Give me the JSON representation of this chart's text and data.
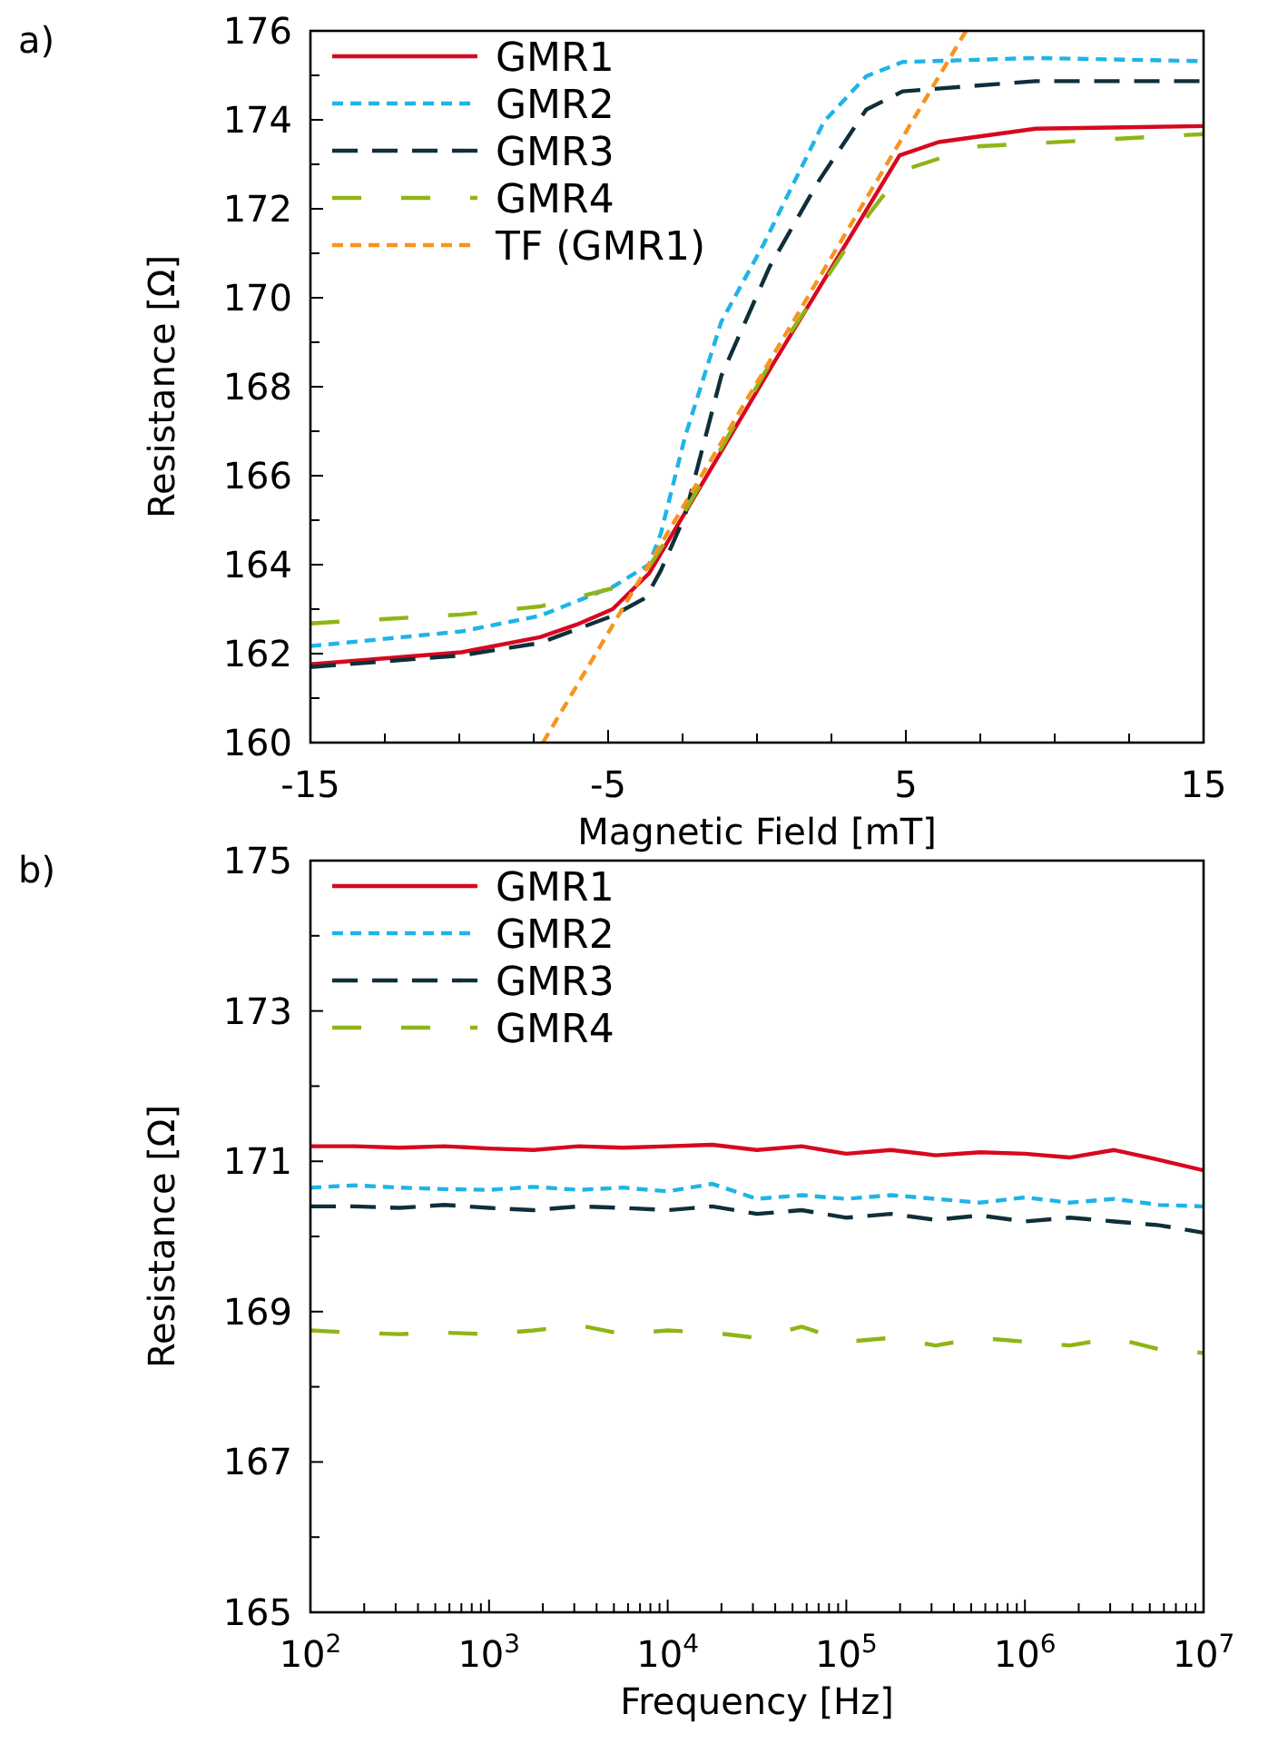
{
  "chart_data": [
    {
      "type": "line",
      "annotations": [
        "a)"
      ],
      "xlabel": "Magnetic Field [mT]",
      "ylabel": "Resistance [Ω]",
      "xlim": [
        -15,
        15
      ],
      "ylim": [
        160,
        176
      ],
      "xticks": [
        -15,
        {
          "value": -12.5,
          "label": null
        },
        {
          "value": -10,
          "label": null
        },
        {
          "value": -7.5,
          "label": null
        },
        -5,
        {
          "value": -2.5,
          "label": null
        },
        {
          "value": 0,
          "label": null
        },
        {
          "value": 2.5,
          "label": null
        },
        5,
        {
          "value": 7.5,
          "label": null
        },
        {
          "value": 10,
          "label": null
        },
        {
          "value": 12.5,
          "label": null
        },
        15
      ],
      "yticks": [
        160,
        {
          "value": 161,
          "label": null
        },
        162,
        {
          "value": 163,
          "label": null
        },
        164,
        {
          "value": 165,
          "label": null
        },
        166,
        {
          "value": 167,
          "label": null
        },
        168,
        {
          "value": 169,
          "label": null
        },
        170,
        {
          "value": 171,
          "label": null
        },
        172,
        {
          "value": 173,
          "label": null
        },
        174,
        {
          "value": 175,
          "label": null
        },
        176
      ],
      "grid": false,
      "legend": "top left",
      "series": [
        {
          "name": "GMR1",
          "color": "#d7081f",
          "line_style": "solid",
          "x": [
            -15,
            -9.93,
            -7.29,
            -6.07,
            -4.85,
            -3.63,
            0.53,
            4.79,
            6.1,
            9.36,
            15
          ],
          "values": [
            161.76,
            162.03,
            162.37,
            162.65,
            163.0,
            163.8,
            168.5,
            173.2,
            173.5,
            173.8,
            173.86
          ]
        },
        {
          "name": "GMR2",
          "color": "#1eb4e8",
          "line_style": "dotted",
          "x": [
            -15,
            -9.93,
            -7.29,
            -4.85,
            -3.63,
            -3.23,
            -2.42,
            -1.2,
            0.22,
            2.25,
            3.67,
            4.89,
            9.36,
            15
          ],
          "values": [
            162.17,
            162.5,
            162.85,
            163.5,
            164.0,
            164.7,
            166.87,
            169.46,
            171.2,
            173.96,
            174.98,
            175.3,
            175.39,
            175.32
          ]
        },
        {
          "name": "GMR3",
          "color": "#0f2f3a",
          "line_style": "dashed",
          "x": [
            -15,
            -9.93,
            -7.29,
            -4.85,
            -3.73,
            -3.23,
            -2.42,
            -1.2,
            0.42,
            2.05,
            3.67,
            4.89,
            9.36,
            15
          ],
          "values": [
            161.7,
            161.96,
            162.24,
            162.85,
            163.26,
            163.87,
            165.1,
            168.24,
            170.69,
            172.6,
            174.23,
            174.64,
            174.87,
            174.87
          ]
        },
        {
          "name": "GMR4",
          "color": "#8fb515",
          "line_style": "dashed",
          "x": [
            -15,
            -9.93,
            -7.29,
            -4.85,
            -3.63,
            -2.42,
            0.42,
            3.67,
            4.89,
            7.33,
            15
          ],
          "values": [
            162.68,
            162.88,
            163.06,
            163.47,
            163.95,
            165.2,
            168.5,
            171.8,
            172.86,
            173.4,
            173.68
          ]
        },
        {
          "name": "TF (GMR1)",
          "color": "#f7941d",
          "line_style": "dotted",
          "x": [
            -7.19,
            7.02
          ],
          "values": [
            160,
            176
          ]
        }
      ]
    },
    {
      "type": "line",
      "annotations": [
        "b)"
      ],
      "xlabel": "Frequency [Hz]",
      "ylabel": "Resistance [Ω]",
      "log": "x",
      "xlim": [
        100,
        10000000
      ],
      "ylim": [
        165,
        175
      ],
      "xticks": [
        {
          "value": 100,
          "label": "10$^{2}$"
        },
        {
          "value": 200,
          "label": null
        },
        {
          "value": 300,
          "label": null
        },
        {
          "value": 400,
          "label": null
        },
        {
          "value": 500,
          "label": null
        },
        {
          "value": 600,
          "label": null
        },
        {
          "value": 700,
          "label": null
        },
        {
          "value": 800,
          "label": null
        },
        {
          "value": 900,
          "label": null
        },
        {
          "value": 1000,
          "label": "10$^{3}$"
        },
        {
          "value": 2000,
          "label": null
        },
        {
          "value": 3000,
          "label": null
        },
        {
          "value": 4000,
          "label": null
        },
        {
          "value": 5000,
          "label": null
        },
        {
          "value": 6000,
          "label": null
        },
        {
          "value": 7000,
          "label": null
        },
        {
          "value": 8000,
          "label": null
        },
        {
          "value": 9000,
          "label": null
        },
        {
          "value": 10000,
          "label": "10$^{4}$"
        },
        {
          "value": 20000,
          "label": null
        },
        {
          "value": 30000,
          "label": null
        },
        {
          "value": 40000,
          "label": null
        },
        {
          "value": 50000,
          "label": null
        },
        {
          "value": 60000,
          "label": null
        },
        {
          "value": 70000,
          "label": null
        },
        {
          "value": 80000,
          "label": null
        },
        {
          "value": 90000,
          "label": null
        },
        {
          "value": 100000,
          "label": "10$^{5}$"
        },
        {
          "value": 200000,
          "label": null
        },
        {
          "value": 300000,
          "label": null
        },
        {
          "value": 400000,
          "label": null
        },
        {
          "value": 500000,
          "label": null
        },
        {
          "value": 600000,
          "label": null
        },
        {
          "value": 700000,
          "label": null
        },
        {
          "value": 800000,
          "label": null
        },
        {
          "value": 900000,
          "label": null
        },
        {
          "value": 1000000,
          "label": "10$^{6}$"
        },
        {
          "value": 2000000,
          "label": null
        },
        {
          "value": 3000000,
          "label": null
        },
        {
          "value": 4000000,
          "label": null
        },
        {
          "value": 5000000,
          "label": null
        },
        {
          "value": 6000000,
          "label": null
        },
        {
          "value": 7000000,
          "label": null
        },
        {
          "value": 8000000,
          "label": null
        },
        {
          "value": 9000000,
          "label": null
        },
        {
          "value": 10000000,
          "label": "10$^{7}$"
        }
      ],
      "yticks": [
        165,
        {
          "value": 166,
          "label": null
        },
        167,
        {
          "value": 168,
          "label": null
        },
        169,
        {
          "value": 170,
          "label": null
        },
        171,
        {
          "value": 172,
          "label": null
        },
        173,
        {
          "value": 174,
          "label": null
        },
        175
      ],
      "grid": false,
      "legend": "top left",
      "x": [
        100,
        178,
        316,
        562,
        1000,
        1778,
        3162,
        5623,
        10000,
        17783,
        31623,
        56234,
        100000,
        177828,
        316228,
        562341,
        1000000,
        1778279,
        3162278,
        5623413,
        10000000
      ],
      "series": [
        {
          "name": "GMR1",
          "color": "#d7081f",
          "line_style": "solid",
          "values": [
            171.2,
            171.2,
            171.18,
            171.2,
            171.17,
            171.15,
            171.2,
            171.18,
            171.2,
            171.22,
            171.15,
            171.2,
            171.1,
            171.15,
            171.08,
            171.12,
            171.1,
            171.05,
            171.15,
            171.02,
            170.88
          ]
        },
        {
          "name": "GMR2",
          "color": "#1eb4e8",
          "line_style": "dotted",
          "values": [
            170.65,
            170.68,
            170.65,
            170.63,
            170.62,
            170.66,
            170.62,
            170.65,
            170.6,
            170.7,
            170.5,
            170.55,
            170.5,
            170.55,
            170.5,
            170.45,
            170.52,
            170.45,
            170.5,
            170.42,
            170.4
          ]
        },
        {
          "name": "GMR3",
          "color": "#0f2f3a",
          "line_style": "dashed",
          "values": [
            170.4,
            170.4,
            170.38,
            170.42,
            170.38,
            170.35,
            170.4,
            170.38,
            170.35,
            170.4,
            170.3,
            170.35,
            170.25,
            170.3,
            170.22,
            170.28,
            170.2,
            170.25,
            170.2,
            170.15,
            170.05
          ]
        },
        {
          "name": "GMR4",
          "color": "#8fb515",
          "line_style": "dashed",
          "values": [
            168.75,
            168.72,
            168.7,
            168.72,
            168.7,
            168.75,
            168.82,
            168.7,
            168.75,
            168.72,
            168.65,
            168.8,
            168.6,
            168.65,
            168.55,
            168.65,
            168.6,
            168.55,
            168.65,
            168.5,
            168.45
          ]
        }
      ]
    }
  ]
}
